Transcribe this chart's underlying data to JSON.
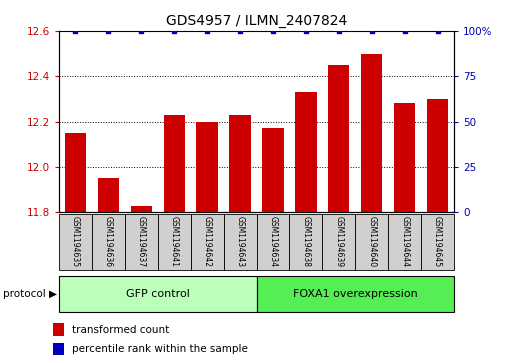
{
  "title": "GDS4957 / ILMN_2407824",
  "samples": [
    "GSM1194635",
    "GSM1194636",
    "GSM1194637",
    "GSM1194641",
    "GSM1194642",
    "GSM1194643",
    "GSM1194634",
    "GSM1194638",
    "GSM1194639",
    "GSM1194640",
    "GSM1194644",
    "GSM1194645"
  ],
  "bar_values": [
    12.15,
    11.95,
    11.83,
    12.23,
    12.2,
    12.23,
    12.17,
    12.33,
    12.45,
    12.5,
    12.28,
    12.3
  ],
  "percentile_values": [
    100,
    100,
    100,
    100,
    100,
    100,
    100,
    100,
    100,
    100,
    100,
    100
  ],
  "bar_color": "#cc0000",
  "dot_color": "#0000bb",
  "ylim_left": [
    11.8,
    12.6
  ],
  "ylim_right": [
    0,
    100
  ],
  "yticks_left": [
    11.8,
    12.0,
    12.2,
    12.4,
    12.6
  ],
  "yticks_right": [
    0,
    25,
    50,
    75,
    100
  ],
  "group1_label": "GFP control",
  "group2_label": "FOXA1 overexpression",
  "group1_count": 6,
  "group2_count": 6,
  "protocol_label": "protocol",
  "legend_bar_label": "transformed count",
  "legend_dot_label": "percentile rank within the sample",
  "group1_color": "#bbffbb",
  "group2_color": "#55ee55",
  "tick_color_left": "#cc0000",
  "tick_color_right": "#0000bb",
  "bar_width": 0.65,
  "sample_box_color": "#d0d0d0",
  "title_fontsize": 10,
  "label_fontsize": 5.5,
  "group_fontsize": 8,
  "legend_fontsize": 7.5
}
